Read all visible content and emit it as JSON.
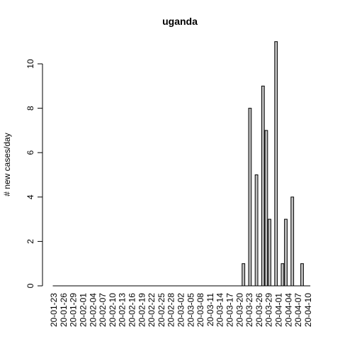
{
  "chart_data": {
    "type": "bar",
    "title": "uganda",
    "xlabel": "",
    "ylabel": "# new cases/day",
    "ylim": [
      0,
      11
    ],
    "yticks": [
      0,
      2,
      4,
      6,
      8,
      10
    ],
    "xtick_labels": [
      "20-01-23",
      "20-01-26",
      "20-01-29",
      "20-02-01",
      "20-02-04",
      "20-02-07",
      "20-02-10",
      "20-02-13",
      "20-02-16",
      "20-02-19",
      "20-02-22",
      "20-02-25",
      "20-02-28",
      "20-03-02",
      "20-03-05",
      "20-03-08",
      "20-03-11",
      "20-03-14",
      "20-03-17",
      "20-03-20",
      "20-03-23",
      "20-03-26",
      "20-03-29",
      "20-04-01",
      "20-04-04",
      "20-04-07",
      "20-04-10"
    ],
    "dates": [
      "20-01-23",
      "20-01-24",
      "20-01-25",
      "20-01-26",
      "20-01-27",
      "20-01-28",
      "20-01-29",
      "20-01-30",
      "20-01-31",
      "20-02-01",
      "20-02-02",
      "20-02-03",
      "20-02-04",
      "20-02-05",
      "20-02-06",
      "20-02-07",
      "20-02-08",
      "20-02-09",
      "20-02-10",
      "20-02-11",
      "20-02-12",
      "20-02-13",
      "20-02-14",
      "20-02-15",
      "20-02-16",
      "20-02-17",
      "20-02-18",
      "20-02-19",
      "20-02-20",
      "20-02-21",
      "20-02-22",
      "20-02-23",
      "20-02-24",
      "20-02-25",
      "20-02-26",
      "20-02-27",
      "20-02-28",
      "20-02-29",
      "20-03-01",
      "20-03-02",
      "20-03-03",
      "20-03-04",
      "20-03-05",
      "20-03-06",
      "20-03-07",
      "20-03-08",
      "20-03-09",
      "20-03-10",
      "20-03-11",
      "20-03-12",
      "20-03-13",
      "20-03-14",
      "20-03-15",
      "20-03-16",
      "20-03-17",
      "20-03-18",
      "20-03-19",
      "20-03-20",
      "20-03-21",
      "20-03-22",
      "20-03-23",
      "20-03-24",
      "20-03-25",
      "20-03-26",
      "20-03-27",
      "20-03-28",
      "20-03-29",
      "20-03-30",
      "20-03-31",
      "20-04-01",
      "20-04-02",
      "20-04-03",
      "20-04-04",
      "20-04-05",
      "20-04-06",
      "20-04-07",
      "20-04-08",
      "20-04-09",
      "20-04-10"
    ],
    "values": [
      0,
      0,
      0,
      0,
      0,
      0,
      0,
      0,
      0,
      0,
      0,
      0,
      0,
      0,
      0,
      0,
      0,
      0,
      0,
      0,
      0,
      0,
      0,
      0,
      0,
      0,
      0,
      0,
      0,
      0,
      0,
      0,
      0,
      0,
      0,
      0,
      0,
      0,
      0,
      0,
      0,
      0,
      0,
      0,
      0,
      0,
      0,
      0,
      0,
      0,
      0,
      0,
      0,
      0,
      0,
      0,
      0,
      0,
      1,
      0,
      8,
      0,
      5,
      0,
      9,
      7,
      3,
      0,
      11,
      0,
      1,
      3,
      0,
      4,
      0,
      0,
      1,
      0,
      0
    ],
    "grid": false,
    "legend": "none"
  }
}
